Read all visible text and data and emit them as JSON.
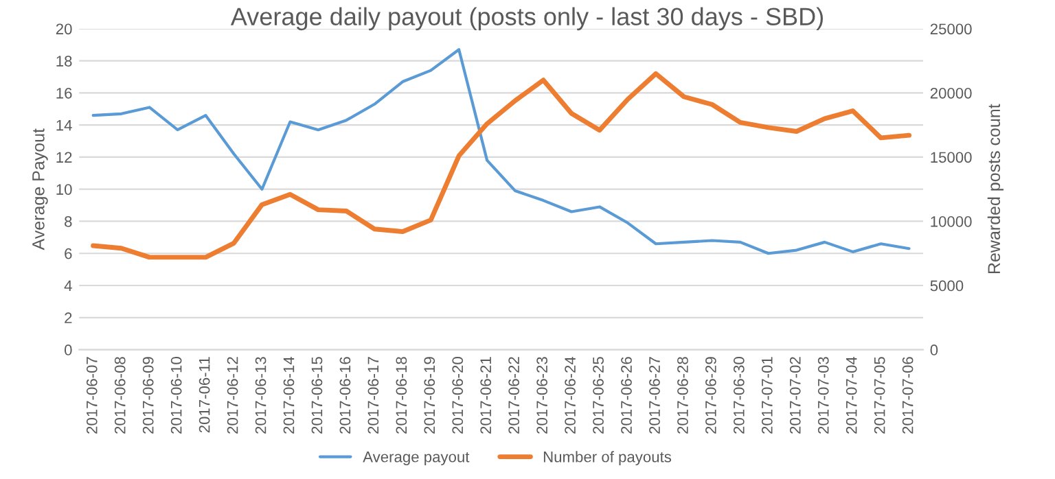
{
  "chart_data": {
    "type": "line",
    "title": "Average daily payout (posts only - last 30 days - SBD)",
    "ylabel": "Average Payout",
    "y2label": "Rewarded posts count",
    "categories": [
      "2017-06-07",
      "2017-06-08",
      "2017-06-09",
      "2017-06-10",
      "2017-06-11",
      "2017-06-12",
      "2017-06-13",
      "2017-06-14",
      "2017-06-15",
      "2017-06-16",
      "2017-06-17",
      "2017-06-18",
      "2017-06-19",
      "2017-06-20",
      "2017-06-21",
      "2017-06-22",
      "2017-06-23",
      "2017-06-24",
      "2017-06-25",
      "2017-06-26",
      "2017-06-27",
      "2017-06-28",
      "2017-06-29",
      "2017-06-30",
      "2017-07-01",
      "2017-07-02",
      "2017-07-03",
      "2017-07-04",
      "2017-07-05",
      "2017-07-06"
    ],
    "series": [
      {
        "name": "Average payout",
        "color": "#5b9bd5",
        "values": [
          14.6,
          14.7,
          15.1,
          13.7,
          14.6,
          12.2,
          10.0,
          14.2,
          13.7,
          14.3,
          15.3,
          16.7,
          17.4,
          18.7,
          11.8,
          9.9,
          9.3,
          8.6,
          8.9,
          7.9,
          6.6,
          6.7,
          6.8,
          6.7,
          6.0,
          6.2,
          6.7,
          6.1,
          6.6,
          6.3
        ]
      },
      {
        "name": "Number of payouts",
        "color": "#ed7d31",
        "axis": "y2",
        "values": [
          8100,
          7900,
          7200,
          7200,
          7200,
          8300,
          11300,
          12100,
          10900,
          10800,
          9400,
          9200,
          10100,
          15100,
          17600,
          19400,
          21000,
          18400,
          17100,
          19500,
          21500,
          19700,
          19100,
          17700,
          17300,
          17000,
          18000,
          18600,
          16500,
          16700
        ]
      }
    ],
    "ylim": [
      0,
      20
    ],
    "yticks": [
      0,
      2,
      4,
      6,
      8,
      10,
      12,
      14,
      16,
      18,
      20
    ],
    "y2lim": [
      0,
      25000
    ],
    "y2ticks": [
      0,
      5000,
      10000,
      15000,
      20000,
      25000
    ],
    "grid": "y",
    "legend": "bottom",
    "marker": "none",
    "line_style": "solid"
  }
}
